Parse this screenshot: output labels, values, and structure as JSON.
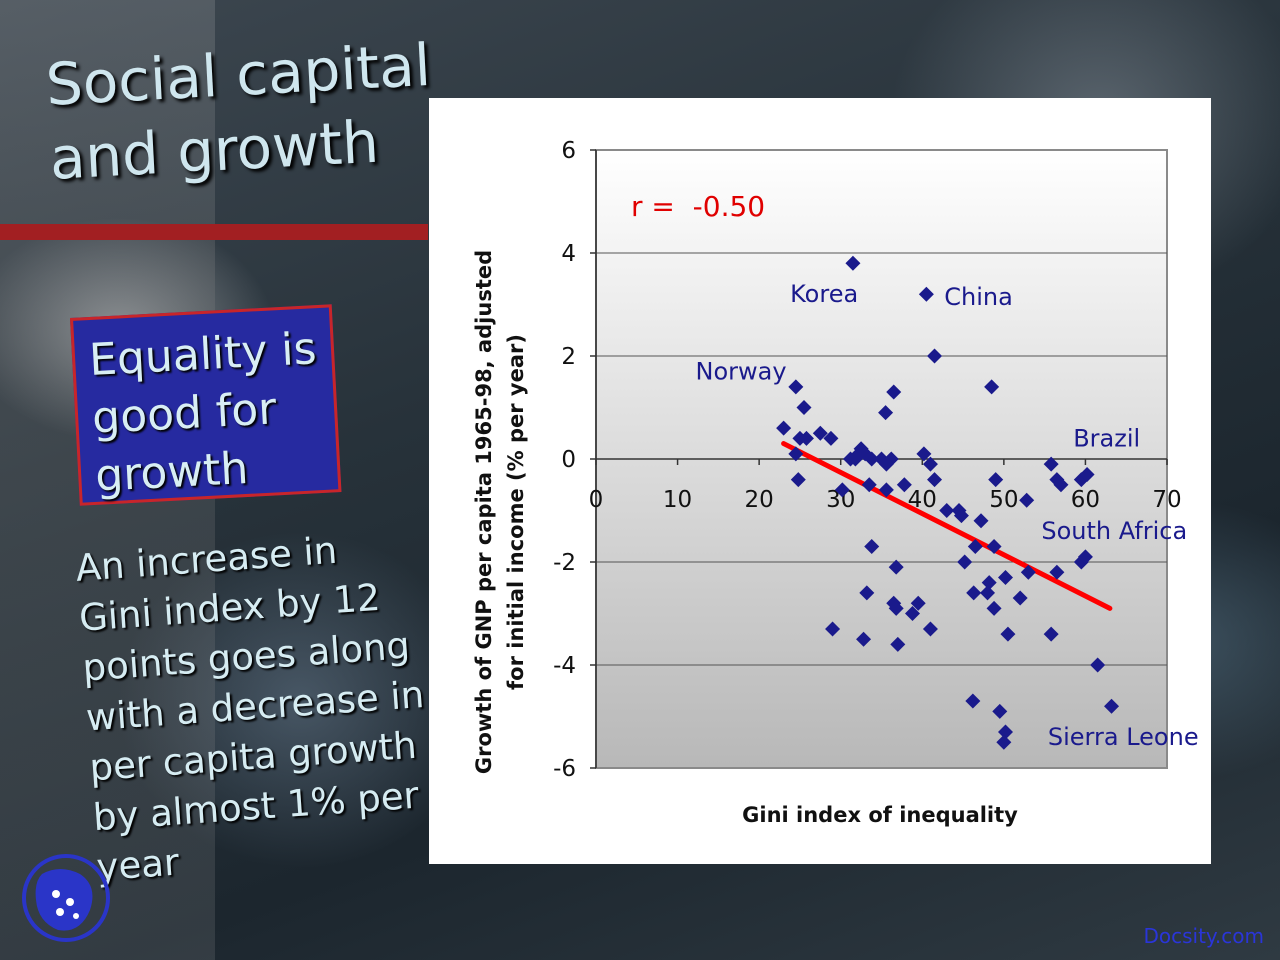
{
  "slide": {
    "title_lines": [
      "Social capital",
      "and growth"
    ],
    "callout_lines": [
      "Equality is",
      "good for",
      "growth"
    ],
    "body_lines": [
      "An increase in",
      "Gini index by 12",
      "points goes along",
      "with a decrease in",
      "per capita growth",
      "by almost 1% per",
      "year"
    ],
    "watermark": "Docsity.com",
    "logo_icon": "university-logo-icon"
  },
  "chart_data": {
    "type": "scatter",
    "xlabel": "Gini index of inequality",
    "ylabel_lines": [
      "Growth of GNP per capita 1965-98, adjusted",
      "for initial income (% per year)"
    ],
    "xlim": [
      0,
      70
    ],
    "ylim": [
      -6,
      6
    ],
    "x_ticks": [
      0,
      10,
      20,
      30,
      40,
      50,
      60,
      70
    ],
    "y_ticks": [
      -6,
      -4,
      -2,
      0,
      2,
      4,
      6
    ],
    "grid": "horizontal",
    "annotation": "r =  -0.50",
    "marker_color": "#1a1a8c",
    "trend_color": "#ff0000",
    "trend_line": [
      [
        23,
        0.3
      ],
      [
        63,
        -2.9
      ]
    ],
    "points": [
      [
        31.5,
        3.8
      ],
      [
        40.5,
        3.2
      ],
      [
        41.5,
        2.0
      ],
      [
        24.5,
        1.4
      ],
      [
        48.5,
        1.4
      ],
      [
        36.5,
        1.3
      ],
      [
        25.5,
        1.0
      ],
      [
        35.5,
        0.9
      ],
      [
        23,
        0.6
      ],
      [
        27.5,
        0.5
      ],
      [
        28.8,
        0.4
      ],
      [
        25,
        0.4
      ],
      [
        25.8,
        0.4
      ],
      [
        32.5,
        0.2
      ],
      [
        33,
        0.1
      ],
      [
        31.8,
        0.0
      ],
      [
        32.2,
        0.1
      ],
      [
        31.2,
        0.0
      ],
      [
        35,
        0.0
      ],
      [
        36.2,
        0.0
      ],
      [
        40.2,
        0.1
      ],
      [
        41,
        -0.1
      ],
      [
        35.6,
        -0.1
      ],
      [
        24.5,
        0.1
      ],
      [
        33.8,
        0.0
      ],
      [
        24.8,
        -0.4
      ],
      [
        30.2,
        -0.6
      ],
      [
        33.5,
        -0.5
      ],
      [
        35.6,
        -0.6
      ],
      [
        37.8,
        -0.5
      ],
      [
        41.5,
        -0.4
      ],
      [
        49,
        -0.4
      ],
      [
        52.8,
        -0.8
      ],
      [
        56.5,
        -0.4
      ],
      [
        57,
        -0.5
      ],
      [
        59.5,
        -0.4
      ],
      [
        60.2,
        -0.3
      ],
      [
        55.8,
        -0.1
      ],
      [
        43,
        -1.0
      ],
      [
        44.5,
        -1.0
      ],
      [
        44.8,
        -1.1
      ],
      [
        47.2,
        -1.2
      ],
      [
        33.8,
        -1.7
      ],
      [
        46.5,
        -1.7
      ],
      [
        48.8,
        -1.7
      ],
      [
        45.2,
        -2.0
      ],
      [
        36.8,
        -2.1
      ],
      [
        53,
        -2.2
      ],
      [
        56.5,
        -2.2
      ],
      [
        59.5,
        -2.0
      ],
      [
        60,
        -1.9
      ],
      [
        50.2,
        -2.3
      ],
      [
        48.2,
        -2.4
      ],
      [
        33.2,
        -2.6
      ],
      [
        46.3,
        -2.6
      ],
      [
        48,
        -2.6
      ],
      [
        52,
        -2.7
      ],
      [
        36.5,
        -2.8
      ],
      [
        39.5,
        -2.8
      ],
      [
        36.8,
        -2.9
      ],
      [
        38.8,
        -3.0
      ],
      [
        48.8,
        -2.9
      ],
      [
        29,
        -3.3
      ],
      [
        41,
        -3.3
      ],
      [
        32.8,
        -3.5
      ],
      [
        37,
        -3.6
      ],
      [
        50.5,
        -3.4
      ],
      [
        55.8,
        -3.4
      ],
      [
        61.5,
        -4.0
      ],
      [
        46.2,
        -4.7
      ],
      [
        49.5,
        -4.9
      ],
      [
        63.2,
        -4.8
      ],
      [
        50.2,
        -5.3
      ],
      [
        50,
        -5.5
      ]
    ],
    "labels": [
      {
        "text": "Korea",
        "x": 23.8,
        "y": 3.2,
        "anchor": "start"
      },
      {
        "text": "China",
        "x": 42.7,
        "y": 3.15,
        "anchor": "start"
      },
      {
        "text": "Norway",
        "x": 12.2,
        "y": 1.7,
        "anchor": "start"
      },
      {
        "text": "Brazil",
        "x": 58.5,
        "y": 0.4,
        "anchor": "start"
      },
      {
        "text": "South Africa",
        "x": 54.6,
        "y": -1.4,
        "anchor": "start"
      },
      {
        "text": "Sierra Leone",
        "x": 55.4,
        "y": -5.4,
        "anchor": "start"
      }
    ]
  }
}
